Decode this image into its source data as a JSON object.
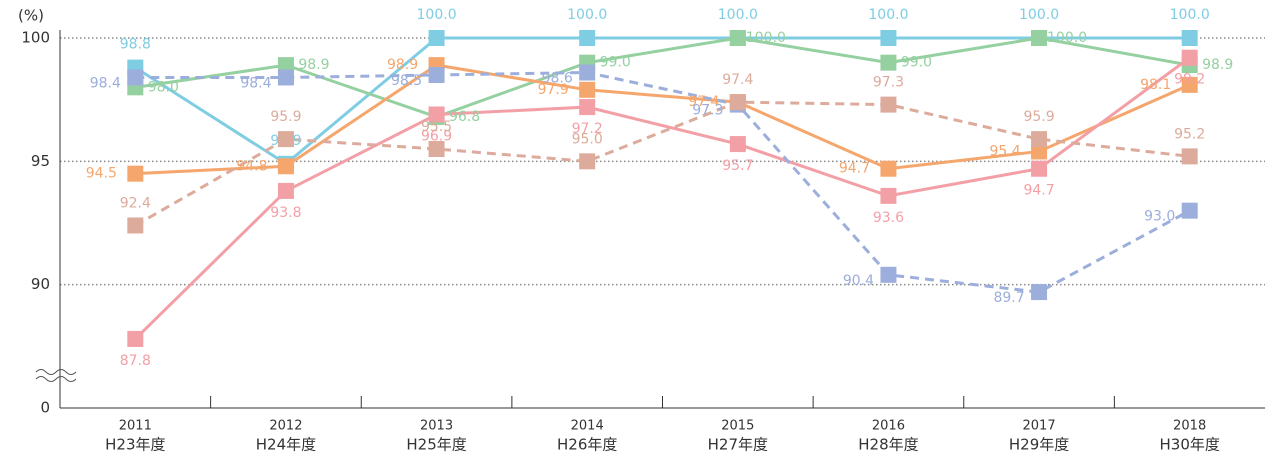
{
  "chart_data": {
    "type": "line",
    "y_label": "(%)",
    "categories": [
      "2011",
      "2012",
      "2013",
      "2014",
      "2015",
      "2016",
      "2017",
      "2018"
    ],
    "sub_categories": [
      "H23年度",
      "H24年度",
      "H25年度",
      "H26年度",
      "H27年度",
      "H28年度",
      "H29年度",
      "H30年度"
    ],
    "ylim": [
      85,
      100
    ],
    "yticks": [
      0,
      90,
      95,
      100
    ],
    "grid": true,
    "axis_break": true,
    "series": [
      {
        "color": "#7fcde2",
        "dash": false,
        "values": [
          98.8,
          94.9,
          100.0,
          100.0,
          100.0,
          100.0,
          100.0,
          100.0
        ],
        "value_labels": [
          "98.8",
          "94.9",
          "100.0",
          "100.0",
          "100.0",
          "100.0",
          "100.0",
          "100.0"
        ]
      },
      {
        "color": "#95d0a0",
        "dash": false,
        "values": [
          98.0,
          98.9,
          96.8,
          99.0,
          100.0,
          99.0,
          100.0,
          98.9
        ],
        "value_labels": [
          "98.0",
          "98.9",
          "96.8",
          "99.0",
          "100.0",
          "99.0",
          "100.0",
          "98.9"
        ]
      },
      {
        "color": "#f5a66c",
        "dash": false,
        "values": [
          94.5,
          94.8,
          98.9,
          97.9,
          97.4,
          94.7,
          95.4,
          98.1
        ],
        "value_labels": [
          "94.5",
          "94.8",
          "98.9",
          "97.9",
          "97.4",
          "94.7",
          "95.4",
          "98.1"
        ]
      },
      {
        "color": "#f39fa6",
        "dash": false,
        "values": [
          87.8,
          93.8,
          96.9,
          97.2,
          95.7,
          93.6,
          94.7,
          99.2
        ],
        "value_labels": [
          "87.8",
          "93.8",
          "96.9",
          "97.2",
          "95.7",
          "93.6",
          "94.7",
          "99.2"
        ]
      },
      {
        "color": "#9caedb",
        "dash": true,
        "values": [
          98.4,
          98.4,
          98.5,
          98.6,
          97.3,
          90.4,
          89.7,
          93.0
        ],
        "value_labels": [
          "98.4",
          "98.4",
          "98.5",
          "98.6",
          "97.3",
          "90.4",
          "89.7",
          "93.0"
        ]
      },
      {
        "color": "#dcab9c",
        "dash": true,
        "values": [
          92.4,
          95.9,
          95.5,
          95.0,
          97.4,
          97.3,
          95.9,
          95.2
        ],
        "value_labels": [
          "92.4",
          "95.9",
          "95.5",
          "95.0",
          "97.4",
          "97.3",
          "95.9",
          "95.2"
        ]
      }
    ]
  }
}
